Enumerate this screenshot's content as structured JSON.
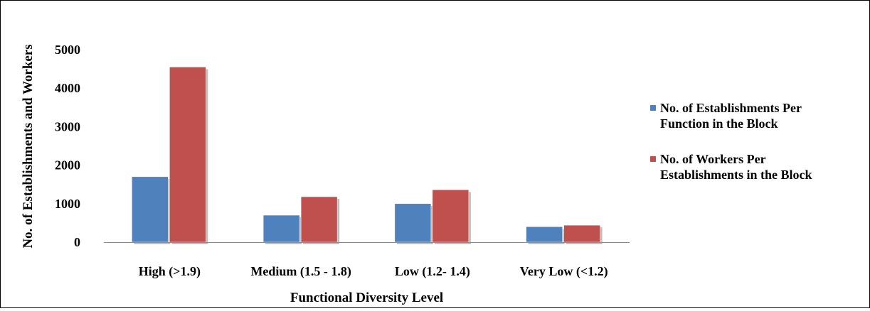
{
  "chart_data": {
    "type": "bar",
    "categories": [
      "High (>1.9)",
      "Medium (1.5 - 1.8)",
      "Low (1.2- 1.4)",
      "Very Low (<1.2)"
    ],
    "series": [
      {
        "name": "No. of Establishments Per Function in the Block",
        "name_lines": [
          "No. of Establishments Per",
          "Function in the Block"
        ],
        "color": "#4F81BD",
        "values": [
          1700,
          700,
          1000,
          400
        ]
      },
      {
        "name": "No. of Workers Per Establishments in the Block",
        "name_lines": [
          "No. of Workers Per",
          "Establishments in the Block"
        ],
        "color": "#C0504D",
        "values": [
          4550,
          1180,
          1360,
          440
        ]
      }
    ],
    "xlabel": "Functional Diversity Level",
    "ylabel": "No. of Establishments and Workers",
    "ylim": [
      0,
      5000
    ],
    "yticks": [
      "0",
      "1000",
      "2000",
      "3000",
      "4000",
      "5000"
    ],
    "grid": false,
    "legend_position": "right"
  }
}
